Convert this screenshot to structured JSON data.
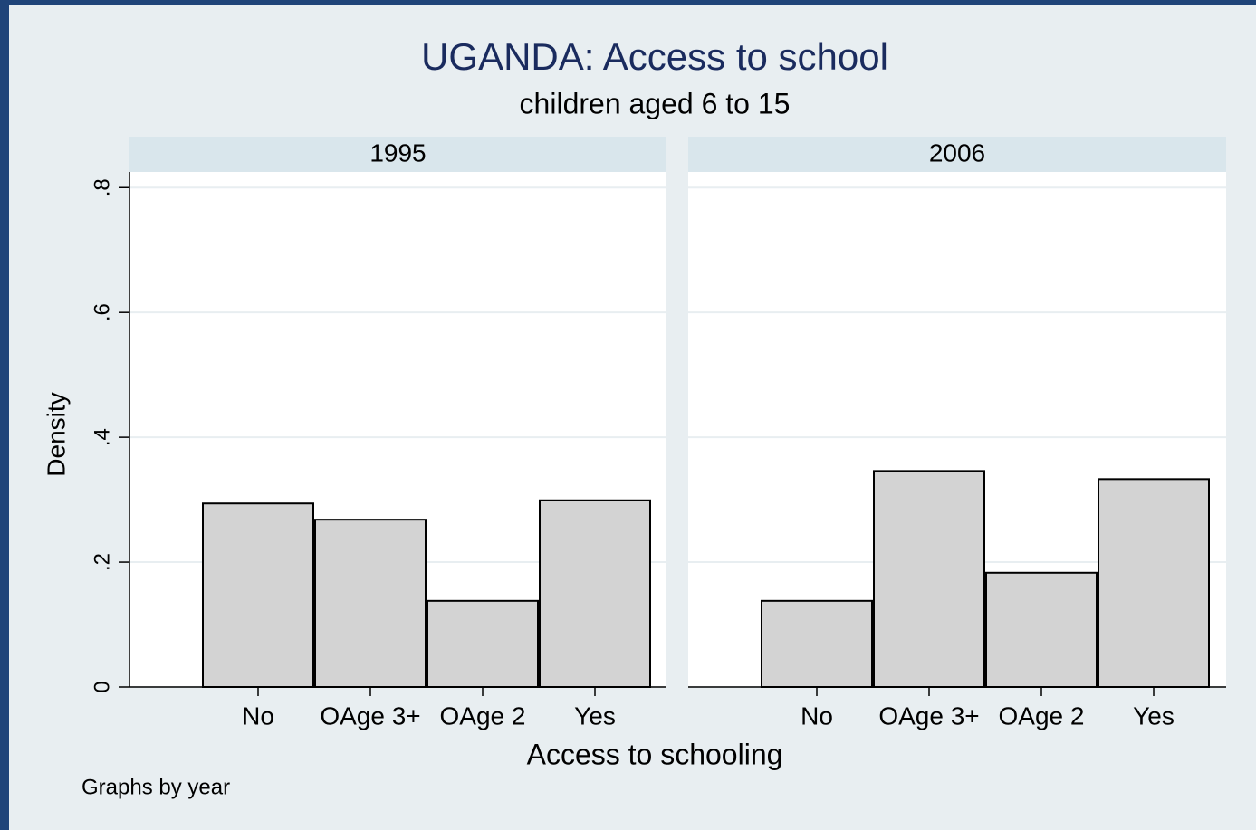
{
  "chart_data": {
    "type": "bar",
    "title": "UGANDA: Access to school",
    "subtitle": "children aged 6 to 15",
    "x_label": "Access to schooling",
    "y_label": "Density",
    "note": "Graphs by year",
    "categories": [
      "No",
      "OAge 3+",
      "OAge 2",
      "Yes"
    ],
    "color": "#d3d3d3",
    "ylim": [
      0,
      0.825
    ],
    "yticks": [
      0,
      {
        "value": 0.2,
        "label": ".2"
      },
      {
        "value": 0.4,
        "label": ".4"
      },
      {
        "value": 0.6,
        "label": ".6"
      },
      {
        "value": 0.8,
        "label": ".8"
      }
    ],
    "grid": true,
    "panels": [
      {
        "title": "1995",
        "values": [
          0.294,
          0.268,
          0.138,
          0.299
        ]
      },
      {
        "title": "2006",
        "values": [
          0.138,
          0.346,
          0.183,
          0.333
        ]
      }
    ]
  }
}
